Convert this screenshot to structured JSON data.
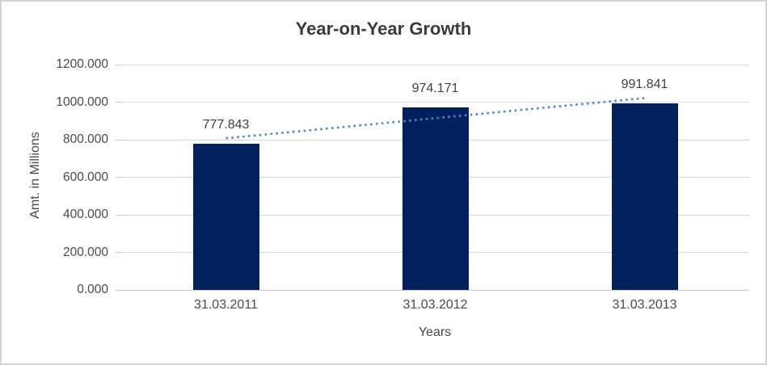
{
  "page": {
    "background": "#FFFFFF",
    "border_color": "#D3D3D3"
  },
  "chart_data": {
    "type": "bar",
    "title": "Year-on-Year Growth",
    "xlabel": "Years",
    "ylabel": "Amt. in Millions",
    "categories": [
      "31.03.2011",
      "31.03.2012",
      "31.03.2013"
    ],
    "values": [
      777.843,
      974.171,
      991.841
    ],
    "value_labels": [
      "777.843",
      "974.171",
      "991.841"
    ],
    "ylim": [
      0,
      1200
    ],
    "ytick_values": [
      0,
      200,
      400,
      600,
      800,
      1000,
      1200
    ],
    "ytick_labels": [
      "0.000",
      "200.000",
      "400.000",
      "600.000",
      "800.000",
      "1000.000",
      "1200.000"
    ],
    "grid": true,
    "legend": "none",
    "bar_color": "#03215C",
    "gridline_color": "#D9D9D9",
    "trendline": {
      "type": "linear",
      "style": "dotted",
      "color": "#4A86C8"
    }
  }
}
